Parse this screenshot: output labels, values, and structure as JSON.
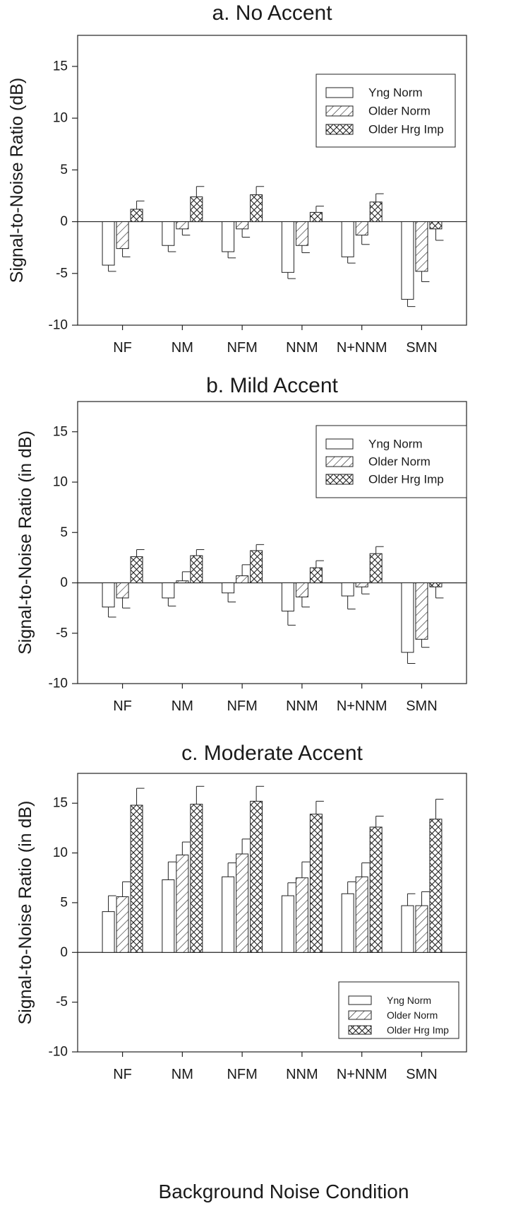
{
  "figure": {
    "xlabel": "Background Noise Condition"
  },
  "legend_labels": {
    "yng_norm": "Yng Norm",
    "older_norm": "Older Norm",
    "older_hrg_imp": "Older Hrg Imp"
  },
  "chart_data": [
    {
      "type": "bar",
      "title": "a. No Accent",
      "ylabel": "Signal-to-Noise Ratio (dB)",
      "xlabel": "",
      "ylim": [
        -10,
        18
      ],
      "yticks": [
        -10,
        -5,
        0,
        5,
        10,
        15
      ],
      "grid": false,
      "legend_position": "top-right",
      "categories": [
        "NF",
        "NM",
        "NFM",
        "NNM",
        "N+NNM",
        "SMN"
      ],
      "series": [
        {
          "name": "Yng Norm",
          "pattern": "open",
          "values": [
            -4.2,
            -2.3,
            -2.9,
            -4.9,
            -3.4,
            -7.5
          ],
          "errors": [
            0.6,
            0.6,
            0.6,
            0.6,
            0.6,
            0.7
          ]
        },
        {
          "name": "Older Norm",
          "pattern": "diagonal",
          "values": [
            -2.6,
            -0.7,
            -0.7,
            -2.3,
            -1.3,
            -4.8
          ],
          "errors": [
            0.8,
            0.6,
            0.8,
            0.7,
            0.9,
            1.0
          ]
        },
        {
          "name": "Older Hrg Imp",
          "pattern": "crosshatch",
          "values": [
            1.2,
            2.4,
            2.6,
            0.9,
            1.9,
            -0.7
          ],
          "errors": [
            0.8,
            1.0,
            0.8,
            0.6,
            0.8,
            1.1
          ]
        }
      ]
    },
    {
      "type": "bar",
      "title": "b. Mild Accent",
      "ylabel": "Signal-to-Noise Ratio (in dB)",
      "xlabel": "",
      "ylim": [
        -10,
        18
      ],
      "yticks": [
        -10,
        -5,
        0,
        5,
        10,
        15
      ],
      "grid": false,
      "legend_position": "top-right",
      "categories": [
        "NF",
        "NM",
        "NFM",
        "NNM",
        "N+NNM",
        "SMN"
      ],
      "series": [
        {
          "name": "Yng Norm",
          "pattern": "open",
          "values": [
            -2.4,
            -1.5,
            -1.0,
            -2.8,
            -1.3,
            -6.9
          ],
          "errors": [
            1.0,
            0.8,
            0.9,
            1.4,
            1.3,
            1.1
          ]
        },
        {
          "name": "Older Norm",
          "pattern": "diagonal",
          "values": [
            -1.5,
            0.2,
            0.7,
            -1.4,
            -0.4,
            -5.6
          ],
          "errors": [
            1.0,
            0.9,
            1.1,
            1.0,
            0.7,
            0.8
          ]
        },
        {
          "name": "Older Hrg Imp",
          "pattern": "crosshatch",
          "values": [
            2.6,
            2.7,
            3.2,
            1.5,
            2.9,
            -0.4
          ],
          "errors": [
            0.7,
            0.6,
            0.6,
            0.7,
            0.7,
            1.1
          ]
        }
      ]
    },
    {
      "type": "bar",
      "title": "c. Moderate Accent",
      "ylabel": "Signal-to-Noise Ratio (in dB)",
      "xlabel": "Background Noise Condition",
      "ylim": [
        -10,
        18
      ],
      "yticks": [
        -10,
        -5,
        0,
        5,
        10,
        15
      ],
      "grid": false,
      "legend_position": "bottom-right",
      "categories": [
        "NF",
        "NM",
        "NFM",
        "NNM",
        "N+NNM",
        "SMN"
      ],
      "series": [
        {
          "name": "Yng Norm",
          "pattern": "open",
          "values": [
            4.1,
            7.3,
            7.6,
            5.7,
            5.9,
            4.7
          ],
          "errors": [
            1.6,
            1.8,
            1.4,
            1.3,
            1.2,
            1.2
          ]
        },
        {
          "name": "Older Norm",
          "pattern": "diagonal",
          "values": [
            5.6,
            9.8,
            9.9,
            7.5,
            7.6,
            4.7
          ],
          "errors": [
            1.5,
            1.3,
            1.5,
            1.6,
            1.4,
            1.4
          ]
        },
        {
          "name": "Older Hrg Imp",
          "pattern": "crosshatch",
          "values": [
            14.8,
            14.9,
            15.2,
            13.9,
            12.6,
            13.4
          ],
          "errors": [
            1.7,
            1.8,
            1.5,
            1.3,
            1.1,
            2.0
          ]
        }
      ]
    }
  ]
}
